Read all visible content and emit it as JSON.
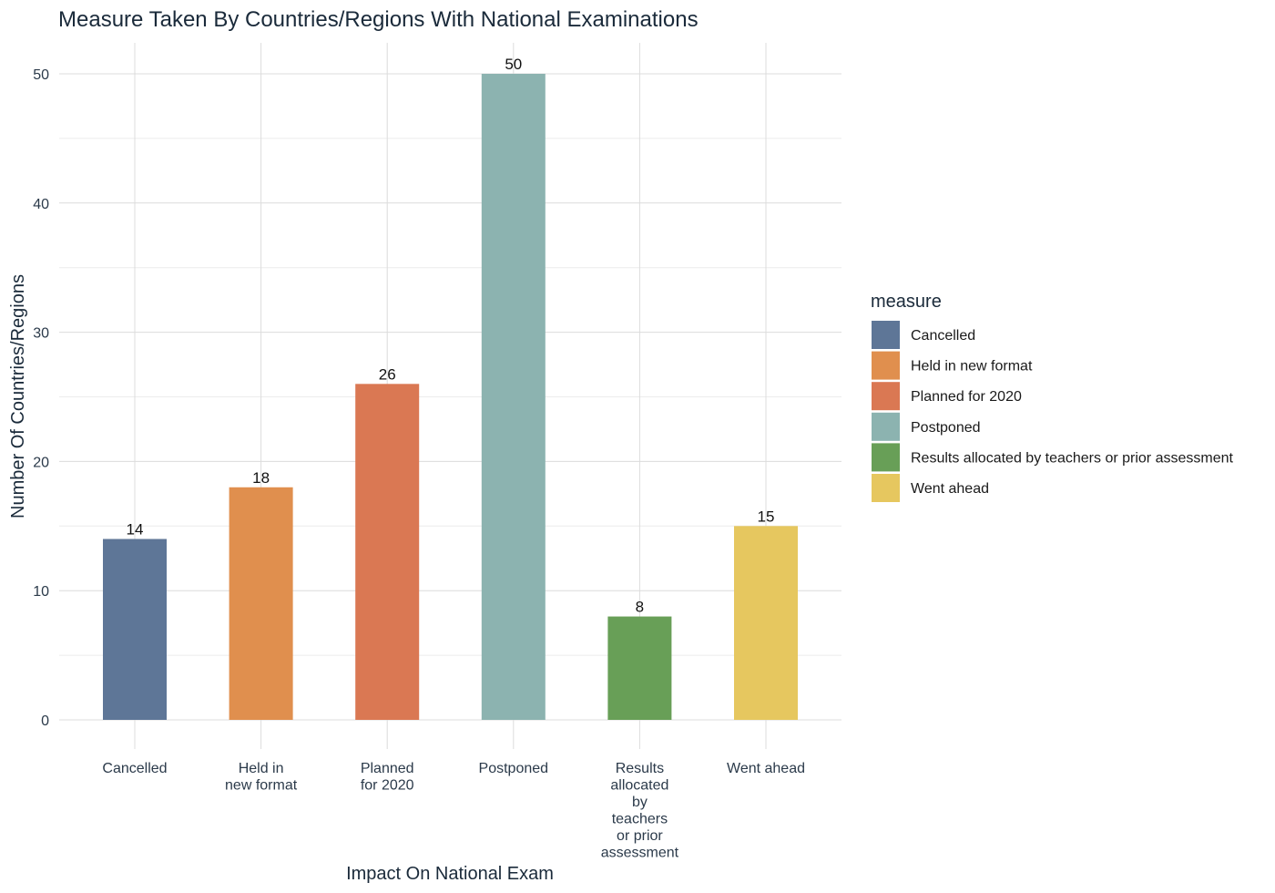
{
  "chart_data": {
    "type": "bar",
    "title": "Measure Taken By Countries/Regions With National Examinations",
    "xlabel": "Impact On National Exam",
    "ylabel": "Number Of Countries/Regions",
    "categories": [
      "Cancelled",
      "Held in new format",
      "Planned for 2020",
      "Postponed",
      "Results allocated by teachers or prior assessment",
      "Went ahead"
    ],
    "category_tick_lines": [
      [
        "Cancelled"
      ],
      [
        "Held in",
        "new format"
      ],
      [
        "Planned",
        "for 2020"
      ],
      [
        "Postponed"
      ],
      [
        "Results",
        "allocated",
        "by",
        "teachers",
        "or prior",
        "assessment"
      ],
      [
        "Went ahead"
      ]
    ],
    "values": [
      14,
      18,
      26,
      50,
      8,
      15
    ],
    "colors": [
      "#5e7697",
      "#e08f4e",
      "#da7853",
      "#8cb3b0",
      "#689f57",
      "#e6c75f"
    ],
    "ylim": [
      0,
      50
    ],
    "yticks": [
      0,
      10,
      20,
      30,
      40,
      50
    ],
    "grid": true,
    "legend": {
      "title": "measure",
      "position": "right",
      "items": [
        "Cancelled",
        "Held in new format",
        "Planned for 2020",
        "Postponed",
        "Results allocated by teachers or prior assessment",
        "Went ahead"
      ]
    }
  }
}
